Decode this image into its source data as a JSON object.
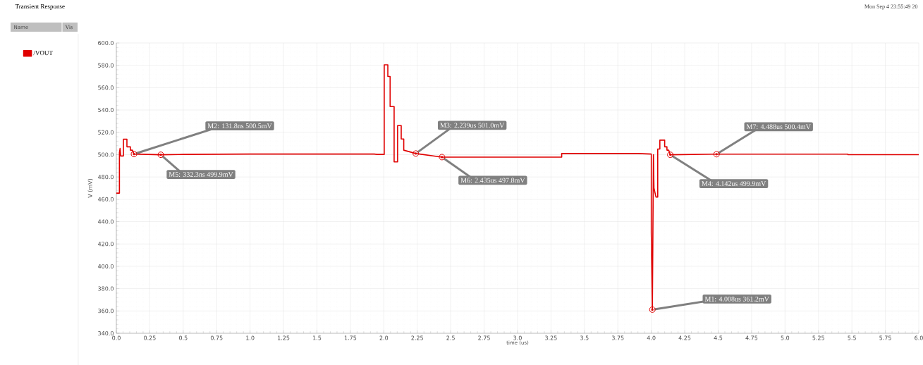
{
  "chart_data": {
    "type": "line",
    "title": "Transient Response",
    "xlabel": "time (us)",
    "ylabel": "V (mV)",
    "legend_title": "Name",
    "legend": "left",
    "grid": true,
    "xlim": [
      0,
      6.0
    ],
    "ylim": [
      340,
      600
    ],
    "xticks": [
      {
        "value": 0,
        "label": "0.0"
      },
      0.25,
      0.5,
      0.75,
      {
        "value": 1,
        "label": "1.0"
      },
      1.25,
      1.5,
      1.75,
      {
        "value": 2,
        "label": "2.0"
      },
      2.25,
      2.5,
      2.75,
      {
        "value": 3,
        "label": "3.0"
      },
      3.25,
      3.5,
      3.75,
      {
        "value": 4,
        "label": "4.0"
      },
      4.25,
      4.5,
      4.75,
      {
        "value": 5,
        "label": "5.0"
      },
      5.25,
      5.5,
      5.75,
      {
        "value": 6,
        "label": "6.0"
      }
    ],
    "yticks": [
      {
        "value": 340,
        "label": "340.0"
      },
      {
        "value": 360,
        "label": "360.0"
      },
      {
        "value": 380,
        "label": "380.0"
      },
      {
        "value": 400,
        "label": "400.0"
      },
      {
        "value": 420,
        "label": "420.0"
      },
      {
        "value": 440,
        "label": "440.0"
      },
      {
        "value": 460,
        "label": "460.0"
      },
      {
        "value": 480,
        "label": "480.0"
      },
      {
        "value": 500,
        "label": "500.0"
      },
      {
        "value": 520,
        "label": "520.0"
      },
      {
        "value": 540,
        "label": "540.0"
      },
      {
        "value": 560,
        "label": "560.0"
      },
      {
        "value": 580,
        "label": "580.0"
      },
      {
        "value": 600,
        "label": "600.0"
      }
    ],
    "series": [
      {
        "name": "/VOUT",
        "color": "#e00000",
        "x": [
          0,
          0.023,
          0.023,
          0.028,
          0.032,
          0.053,
          0.053,
          0.079,
          0.079,
          0.105,
          0.105,
          0.12,
          0.1318,
          0.3323,
          0.5,
          1.0,
          1.5,
          1.928,
          1.95,
          2.003,
          2.003,
          2.03,
          2.03,
          2.047,
          2.047,
          2.077,
          2.077,
          2.103,
          2.103,
          2.13,
          2.13,
          2.149,
          2.149,
          2.239,
          2.435,
          3.0,
          3.33,
          3.33,
          3.9,
          4.0,
          4.0,
          4.008,
          4.016,
          4.02,
          4.035,
          4.048,
          4.048,
          4.064,
          4.064,
          4.1,
          4.1,
          4.117,
          4.117,
          4.13,
          4.142,
          4.488,
          5.47,
          5.47,
          6.0
        ],
        "values": [
          465.5,
          465.5,
          502,
          505.6,
          498.8,
          498.8,
          513.8,
          513.8,
          507,
          507,
          504,
          504,
          500.5,
          499.9,
          500.2,
          500.5,
          500.5,
          500.5,
          500.2,
          500.2,
          580.4,
          580.4,
          570,
          570,
          543,
          543,
          493.5,
          493.5,
          526,
          526,
          514,
          514,
          504,
          501.0,
          497.8,
          497.8,
          497.8,
          501,
          501,
          500.5,
          430,
          361.2,
          500,
          470,
          462,
          462,
          505,
          505,
          513,
          513,
          507,
          507,
          504,
          504,
          499.9,
          500.4,
          500.4,
          500,
          500
        ]
      }
    ],
    "annotations": [
      {
        "text": "M1: 4.008us 361.2mV",
        "x": 4.008,
        "y": 361.2
      },
      {
        "text": "M2: 131.8ns 500.5mV",
        "x": 0.1318,
        "y": 500.5
      },
      {
        "text": "M3: 2.239us 501.0mV",
        "x": 2.239,
        "y": 501.0
      },
      {
        "text": "M4: 4.142us 499.9mV",
        "x": 4.142,
        "y": 499.9
      },
      {
        "text": "M5: 332.3ns 499.9mV",
        "x": 0.3323,
        "y": 499.9
      },
      {
        "text": "M6: 2.435us 497.8mV",
        "x": 2.435,
        "y": 497.8
      },
      {
        "text": "M7: 4.488us 500.4mV",
        "x": 4.488,
        "y": 500.4
      },
      "Vis",
      "Mon Sep 4 23:55:49 20"
    ]
  }
}
